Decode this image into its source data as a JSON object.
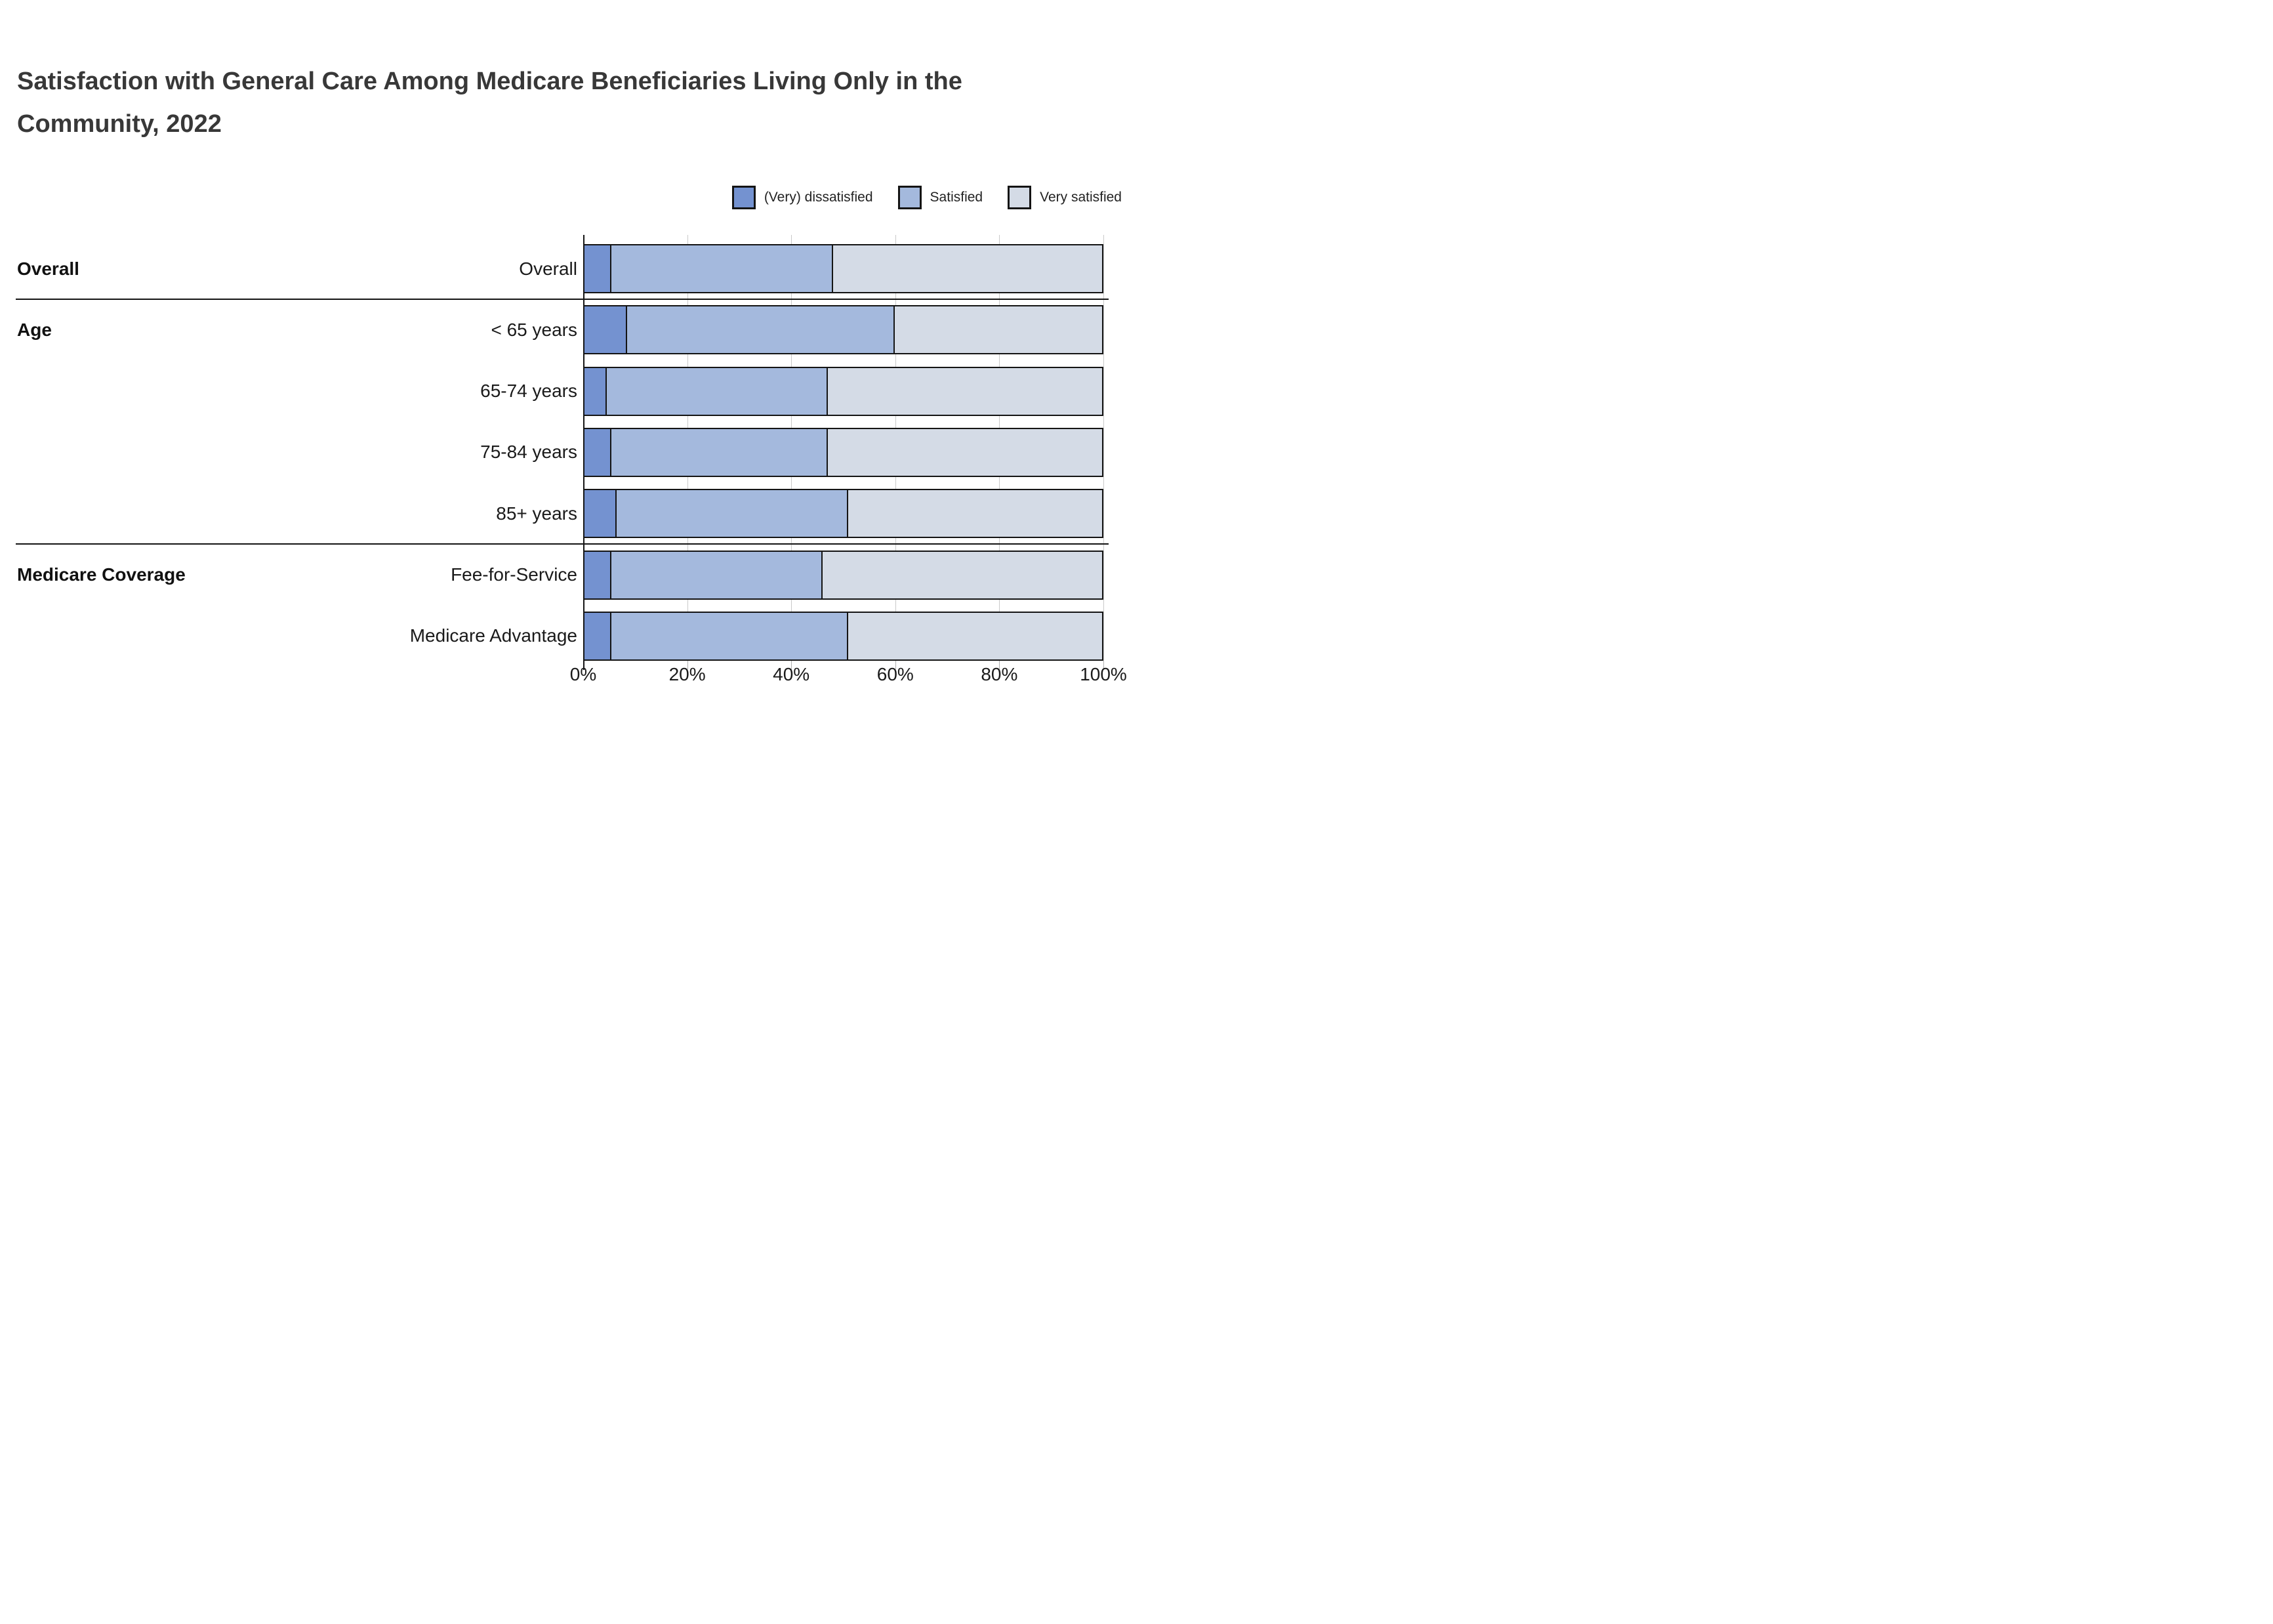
{
  "title": {
    "line1": "Satisfaction with General Care Among Medicare Beneficiaries Living Only in the",
    "line2": "Community, 2022"
  },
  "legend": {
    "items": [
      {
        "label": "(Very) dissatisfied",
        "color": "#7492d0"
      },
      {
        "label": "Satisfied",
        "color": "#a4b9dd"
      },
      {
        "label": "Very satisfied",
        "color": "#d4dbe6"
      }
    ]
  },
  "chart_data": {
    "type": "bar",
    "orientation": "horizontal",
    "stacked": true,
    "title": "Satisfaction with General Care Among Medicare Beneficiaries Living Only in the Community, 2022",
    "categories": [
      "Overall",
      "< 65 years",
      "65-74 years",
      "75-84 years",
      "85+ years",
      "Fee-for-Service",
      "Medicare Advantage"
    ],
    "groups": [
      {
        "label": "Overall",
        "first_row": 0,
        "rows": [
          0
        ]
      },
      {
        "label": "Age",
        "first_row": 1,
        "rows": [
          1,
          2,
          3,
          4
        ]
      },
      {
        "label": "Medicare Coverage",
        "first_row": 5,
        "rows": [
          5,
          6
        ]
      }
    ],
    "series": [
      {
        "name": "(Very) dissatisfied",
        "color": "#7492d0",
        "values": [
          5,
          8,
          4,
          5,
          6,
          5,
          5
        ]
      },
      {
        "name": "Satisfied",
        "color": "#a4b9dd",
        "values": [
          43,
          52,
          43,
          42,
          45,
          41,
          46
        ]
      },
      {
        "name": "Very satisfied",
        "color": "#d4dbe6",
        "values": [
          52,
          40,
          53,
          53,
          49,
          54,
          49
        ]
      }
    ],
    "x_ticks": [
      {
        "pct": 0,
        "label": "0%"
      },
      {
        "pct": 20,
        "label": "20%"
      },
      {
        "pct": 40,
        "label": "40%"
      },
      {
        "pct": 60,
        "label": "60%"
      },
      {
        "pct": 80,
        "label": "80%"
      },
      {
        "pct": 100,
        "label": "100%"
      }
    ],
    "xlim": [
      0,
      100
    ],
    "grid": true,
    "legend_position": "top-right",
    "border_color": "#141414"
  }
}
